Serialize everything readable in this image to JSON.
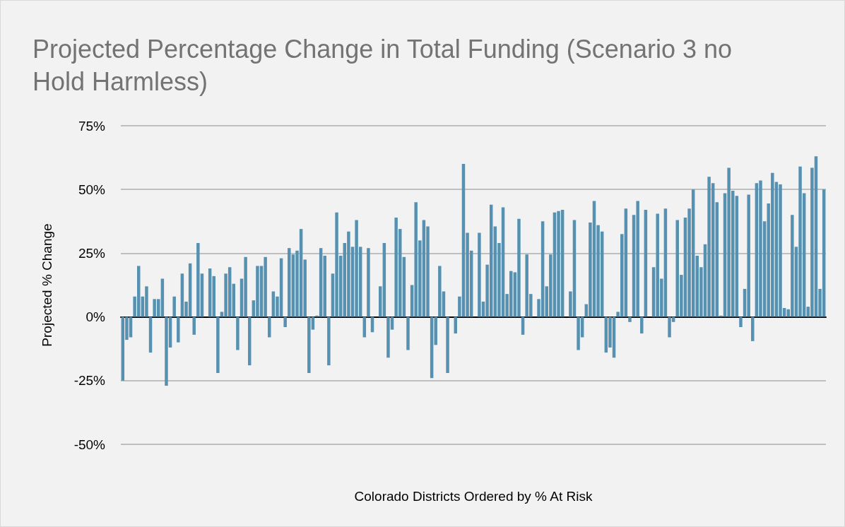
{
  "chart_data": {
    "type": "bar",
    "title": "Projected Percentage Change in Total Funding (Scenario 3 no Hold Harmless)",
    "xlabel": "Colorado Districts Ordered by % At Risk",
    "ylabel": "Projected % Change",
    "color": "#5691b1",
    "categories": [
      null,
      null,
      null,
      null,
      null,
      null,
      null,
      null,
      null,
      null,
      null,
      null,
      null,
      null,
      null,
      null,
      null,
      null,
      null,
      null,
      null,
      null,
      null,
      null,
      null,
      null,
      null,
      null,
      null,
      null,
      null,
      null,
      null,
      null,
      null,
      null,
      null,
      null,
      null,
      null,
      null,
      null,
      null,
      null,
      null,
      null,
      null,
      null,
      null,
      null,
      null,
      null,
      null,
      null,
      null,
      null,
      null,
      null,
      null,
      null,
      null,
      null,
      null,
      null,
      null,
      null,
      null,
      null,
      null,
      null,
      null,
      null,
      null,
      null,
      null,
      null,
      null,
      null,
      null,
      null,
      null,
      null,
      null,
      null,
      null,
      null,
      null,
      null,
      null,
      null,
      null,
      null,
      null,
      null,
      null,
      null,
      null,
      null,
      null,
      null,
      null,
      null,
      null,
      null,
      null,
      null,
      null,
      null,
      null,
      null,
      null,
      null,
      null,
      null,
      null,
      null,
      null,
      null,
      null,
      null,
      null,
      null,
      null,
      null,
      null,
      null,
      null,
      null,
      null,
      null,
      null,
      null,
      null,
      null,
      null,
      null,
      null,
      null,
      null,
      null,
      null,
      null,
      null,
      null,
      null,
      null,
      null,
      null,
      null,
      null,
      null,
      null,
      null,
      null,
      null,
      null,
      null,
      null,
      null,
      null,
      null,
      null,
      null,
      null,
      null,
      null,
      null,
      null,
      null,
      null,
      null,
      null,
      null,
      null,
      null,
      null,
      null,
      null
    ],
    "values": [
      -25,
      -9,
      -8,
      8,
      20,
      8,
      12,
      -14,
      7,
      7,
      15,
      -27,
      -12,
      8,
      -10,
      17,
      6,
      21,
      -7,
      29,
      17,
      0,
      19,
      16,
      -22,
      2,
      17,
      19.5,
      13,
      -13,
      15,
      23.5,
      -19,
      6.5,
      20,
      20,
      23.5,
      -8,
      10,
      8,
      23,
      -4,
      27,
      24.5,
      26,
      34.5,
      22.5,
      -22,
      -5,
      0.5,
      27,
      24,
      -19,
      17,
      41,
      24,
      29,
      33.5,
      27.5,
      38,
      27.5,
      -8,
      27,
      -6,
      0,
      12,
      29,
      -16,
      -5,
      39,
      34.5,
      23.5,
      -13,
      12.5,
      45,
      30,
      38,
      35.5,
      -24,
      -11,
      20,
      10,
      -22,
      0,
      -6.5,
      8,
      60,
      33,
      26,
      0,
      33,
      6,
      20.5,
      44,
      35.5,
      29,
      43,
      9,
      18,
      17.5,
      38.5,
      -7,
      24.5,
      9,
      0,
      7,
      37.5,
      12,
      24.5,
      41,
      41.5,
      42,
      0,
      10,
      38,
      -13,
      -8,
      5,
      37,
      45.5,
      36,
      33.5,
      -14,
      -12,
      -16,
      2,
      32.5,
      42.5,
      -2,
      40,
      45.5,
      -6.5,
      42,
      0,
      19.5,
      40.5,
      15,
      42.5,
      -8,
      -2,
      38,
      16.5,
      39,
      42.5,
      50,
      24,
      19.5,
      28.5,
      55,
      52.5,
      45,
      0.5,
      48.5,
      58.5,
      49.5,
      47.5,
      -4,
      11,
      48,
      -9.5,
      52.5,
      53.5,
      37.5,
      44.5,
      56.5,
      53,
      52,
      3.5,
      3,
      40,
      27.5,
      59,
      48.5,
      4,
      58.5,
      63,
      11,
      50
    ],
    "ylim": [
      -50,
      75
    ],
    "yticks": [
      {
        "value": -50,
        "label": "-50%"
      },
      {
        "value": -25,
        "label": "-25%"
      },
      {
        "value": 0,
        "label": "0%"
      },
      {
        "value": 25,
        "label": "25%"
      },
      {
        "value": 50,
        "label": "50%"
      },
      {
        "value": 75,
        "label": "75%"
      }
    ],
    "grid": "y",
    "tick_labels": "y"
  }
}
